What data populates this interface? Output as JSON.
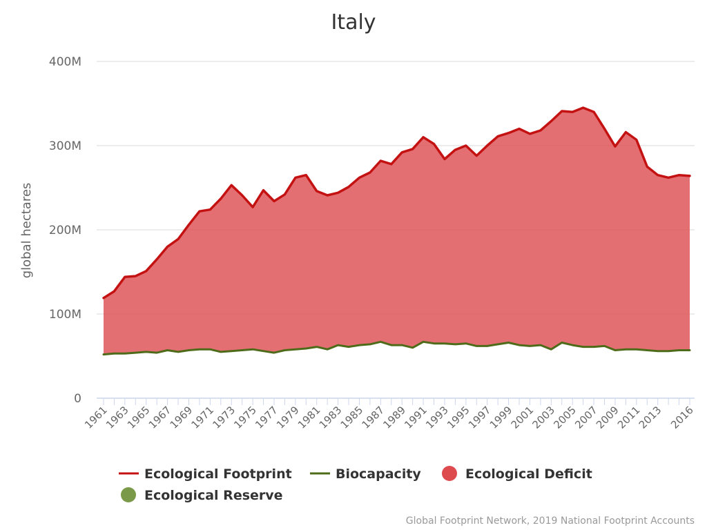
{
  "colors": {
    "footprint": "#c41212",
    "biocapacity": "#4e6b1a",
    "deficit": "#dd4b4f",
    "reserve": "#7a9a4a",
    "grid": "#e6e6e6",
    "axis": "#ccd6eb"
  },
  "credit": "Global Footprint Network, 2019 National Footprint Accounts",
  "chart_data": {
    "type": "area",
    "title": "Italy",
    "ylabel": "global hectares",
    "xlabel": "",
    "ylim": [
      0,
      400000000
    ],
    "yticks": [
      {
        "value": 0,
        "label": "0"
      },
      {
        "value": 100000000,
        "label": "100M"
      },
      {
        "value": 200000000,
        "label": "200M"
      },
      {
        "value": 300000000,
        "label": "300M"
      },
      {
        "value": 400000000,
        "label": "400M"
      }
    ],
    "xticks": [
      "1961",
      "1963",
      "1965",
      "1967",
      "1969",
      "1971",
      "1973",
      "1975",
      "1977",
      "1979",
      "1981",
      "1983",
      "1985",
      "1987",
      "1989",
      "1991",
      "1993",
      "1995",
      "1997",
      "1999",
      "2001",
      "2003",
      "2005",
      "2007",
      "2009",
      "2011",
      "2013",
      "2016"
    ],
    "grid": true,
    "legend_position": "bottom",
    "legend": [
      {
        "label": "Ecological Footprint",
        "symbol": "line",
        "color_key": "footprint"
      },
      {
        "label": "Biocapacity",
        "symbol": "line",
        "color_key": "biocapacity"
      },
      {
        "label": "Ecological Deficit",
        "symbol": "circle",
        "color_key": "deficit"
      },
      {
        "label": "Ecological Reserve",
        "symbol": "circle",
        "color_key": "reserve"
      }
    ],
    "x": [
      1961,
      1962,
      1963,
      1964,
      1965,
      1966,
      1967,
      1968,
      1969,
      1970,
      1971,
      1972,
      1973,
      1974,
      1975,
      1976,
      1977,
      1978,
      1979,
      1980,
      1981,
      1982,
      1983,
      1984,
      1985,
      1986,
      1987,
      1988,
      1989,
      1990,
      1991,
      1992,
      1993,
      1994,
      1995,
      1996,
      1997,
      1998,
      1999,
      2000,
      2001,
      2002,
      2003,
      2004,
      2005,
      2006,
      2007,
      2008,
      2009,
      2010,
      2011,
      2012,
      2013,
      2014,
      2015,
      2016
    ],
    "series": [
      {
        "name": "Ecological Footprint",
        "values": [
          119000000,
          127000000,
          144000000,
          145000000,
          151000000,
          165000000,
          180000000,
          189000000,
          206000000,
          222000000,
          224000000,
          237000000,
          253000000,
          241000000,
          227000000,
          247000000,
          234000000,
          242000000,
          262000000,
          265000000,
          246000000,
          241000000,
          244000000,
          251000000,
          262000000,
          268000000,
          282000000,
          278000000,
          292000000,
          296000000,
          310000000,
          302000000,
          284000000,
          295000000,
          300000000,
          288000000,
          300000000,
          311000000,
          315000000,
          320000000,
          314000000,
          318000000,
          329000000,
          341000000,
          340000000,
          345000000,
          340000000,
          320000000,
          299000000,
          316000000,
          307000000,
          275000000,
          265000000,
          262000000,
          265000000,
          264000000
        ]
      },
      {
        "name": "Biocapacity",
        "values": [
          52000000,
          53000000,
          53000000,
          54000000,
          55000000,
          54000000,
          57000000,
          55000000,
          57000000,
          58000000,
          58000000,
          55000000,
          56000000,
          57000000,
          58000000,
          56000000,
          54000000,
          57000000,
          58000000,
          59000000,
          61000000,
          58000000,
          63000000,
          61000000,
          63000000,
          64000000,
          67000000,
          63000000,
          63000000,
          60000000,
          67000000,
          65000000,
          65000000,
          64000000,
          65000000,
          62000000,
          62000000,
          64000000,
          66000000,
          63000000,
          62000000,
          63000000,
          58000000,
          66000000,
          63000000,
          61000000,
          61000000,
          62000000,
          57000000,
          58000000,
          58000000,
          57000000,
          56000000,
          56000000,
          57000000,
          57000000
        ]
      }
    ]
  }
}
